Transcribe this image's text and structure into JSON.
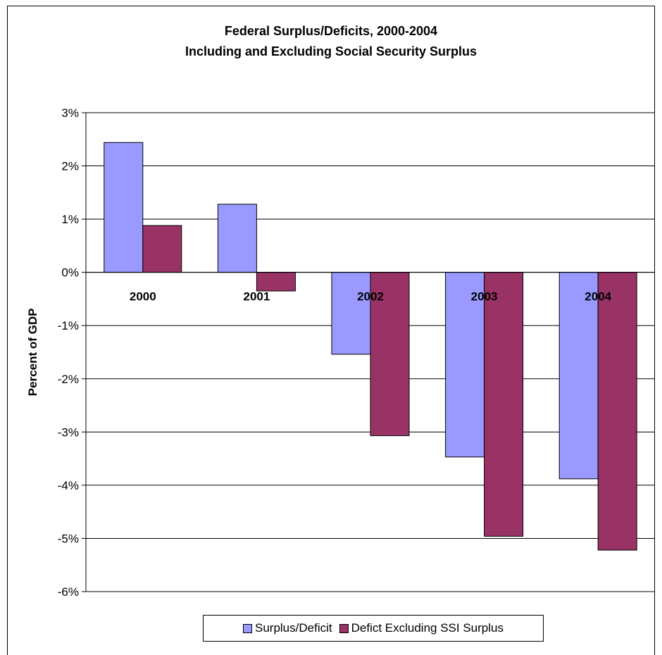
{
  "chart_data": {
    "type": "bar",
    "title": "Federal Surplus/Deficits, 2000-2004",
    "subtitle": "Including and Excluding Social Security Surplus",
    "xlabel": "",
    "ylabel": "Percent of GDP",
    "categories": [
      "2000",
      "2001",
      "2002",
      "2003",
      "2004"
    ],
    "series": [
      {
        "name": "Surplus/Deficit",
        "color": "#9999ff",
        "values": [
          2.44,
          1.28,
          -1.54,
          -3.47,
          -3.88
        ]
      },
      {
        "name": "Defict Excluding SSI Surplus",
        "color": "#993366",
        "values": [
          0.88,
          -0.35,
          -3.07,
          -4.96,
          -5.22
        ]
      }
    ],
    "ylim": [
      -6,
      3
    ],
    "yticks": [
      "3%",
      "2%",
      "1%",
      "0%",
      "-1%",
      "-2%",
      "-3%",
      "-4%",
      "-5%",
      "-6%"
    ],
    "grid": true,
    "legend_position": "bottom"
  }
}
